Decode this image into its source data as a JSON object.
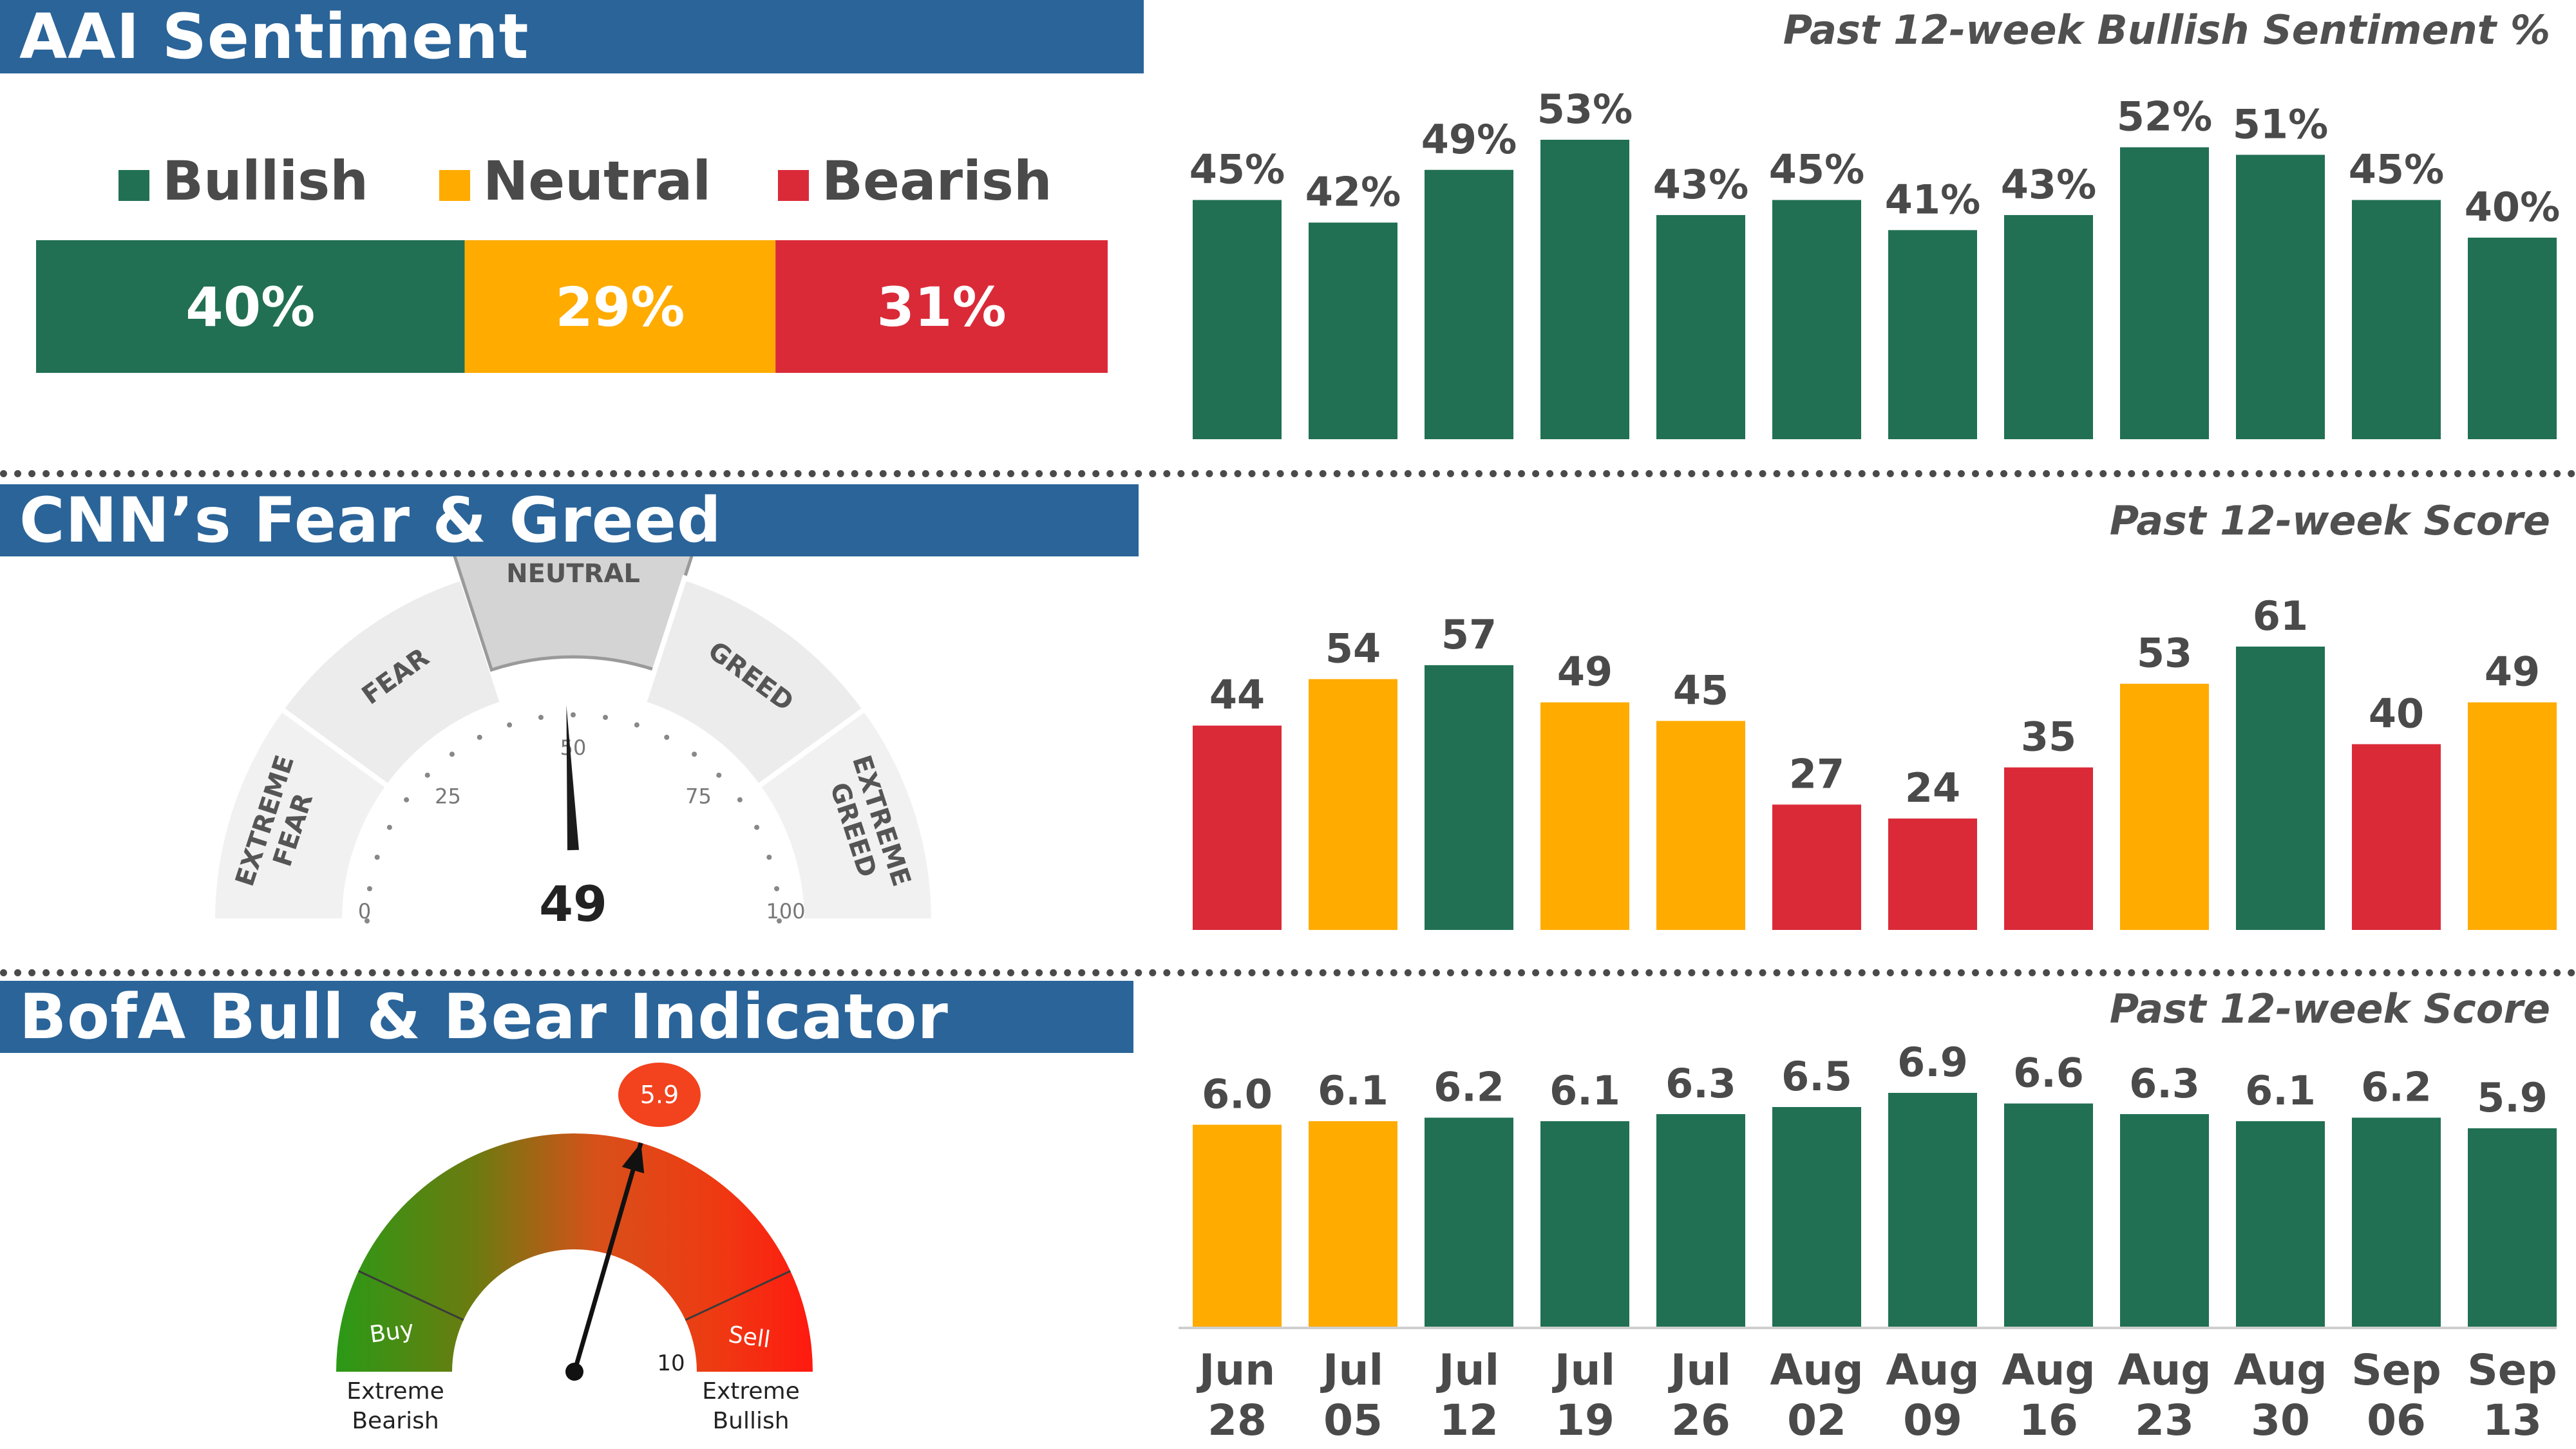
{
  "colors": {
    "green": "#217053",
    "yellow": "#ffab00",
    "red": "#da2a38",
    "banner": "#2a6499",
    "label": "#4a4a4a"
  },
  "aai": {
    "title": "AAI Sentiment",
    "legend": [
      {
        "label": "Bullish",
        "color": "#217053"
      },
      {
        "label": "Neutral",
        "color": "#ffab00"
      },
      {
        "label": "Bearish",
        "color": "#da2a38"
      }
    ],
    "split": [
      {
        "label": "40%",
        "value": 40,
        "color": "#217053"
      },
      {
        "label": "29%",
        "value": 29,
        "color": "#ffab00"
      },
      {
        "label": "31%",
        "value": 31,
        "color": "#da2a38"
      }
    ]
  },
  "cnn": {
    "title": "CNN’s Fear & Greed",
    "gauge": {
      "value": 49,
      "value_label": "49",
      "zones": [
        "EXTREME FEAR",
        "FEAR",
        "NEUTRAL",
        "GREED",
        "EXTREME GREED"
      ],
      "ticks": [
        "0",
        "25",
        "50",
        "75",
        "100"
      ]
    }
  },
  "bofa": {
    "title": "BofA Bull & Bear Indicator",
    "gauge": {
      "value": 5.9,
      "value_label": "5.9",
      "scale_max_label": "10",
      "buy_label": "Buy",
      "sell_label": "Sell",
      "left_label_1": "Extreme",
      "left_label_2": "Bearish",
      "right_label_1": "Extreme",
      "right_label_2": "Bullish"
    }
  },
  "chart_data": [
    {
      "type": "bar",
      "title": "Past 12-week Bullish Sentiment %",
      "categories": [
        "Jun 28",
        "Jul 05",
        "Jul 12",
        "Jul 19",
        "Jul 26",
        "Aug 02",
        "Aug 09",
        "Aug 16",
        "Aug 23",
        "Aug 30",
        "Sep 06",
        "Sep 13"
      ],
      "values": [
        45,
        42,
        49,
        53,
        43,
        45,
        41,
        43,
        52,
        51,
        45,
        40
      ],
      "labels": [
        "45%",
        "42%",
        "49%",
        "53%",
        "43%",
        "45%",
        "41%",
        "43%",
        "52%",
        "51%",
        "45%",
        "40%"
      ],
      "colors": [
        "green",
        "green",
        "green",
        "green",
        "green",
        "green",
        "green",
        "green",
        "green",
        "green",
        "green",
        "green"
      ],
      "ylim": [
        0,
        53
      ]
    },
    {
      "type": "bar",
      "title": "Past 12-week Score",
      "categories": [
        "Jun 28",
        "Jul 05",
        "Jul 12",
        "Jul 19",
        "Jul 26",
        "Aug 02",
        "Aug 09",
        "Aug 16",
        "Aug 23",
        "Aug 30",
        "Sep 06",
        "Sep 13"
      ],
      "values": [
        44,
        54,
        57,
        49,
        45,
        27,
        24,
        35,
        53,
        61,
        40,
        49
      ],
      "labels": [
        "44",
        "54",
        "57",
        "49",
        "45",
        "27",
        "24",
        "35",
        "53",
        "61",
        "40",
        "49"
      ],
      "colors": [
        "red",
        "yellow",
        "green",
        "yellow",
        "yellow",
        "red",
        "red",
        "red",
        "yellow",
        "green",
        "red",
        "yellow"
      ],
      "ylim": [
        0,
        61
      ]
    },
    {
      "type": "bar",
      "title": "Past 12-week Score",
      "categories": [
        "Jun 28",
        "Jul 05",
        "Jul 12",
        "Jul 19",
        "Jul 26",
        "Aug 02",
        "Aug 09",
        "Aug 16",
        "Aug 23",
        "Aug 30",
        "Sep 06",
        "Sep 13"
      ],
      "values": [
        6.0,
        6.1,
        6.2,
        6.1,
        6.3,
        6.5,
        6.9,
        6.6,
        6.3,
        6.1,
        6.2,
        5.9
      ],
      "labels": [
        "6.0",
        "6.1",
        "6.2",
        "6.1",
        "6.3",
        "6.5",
        "6.9",
        "6.6",
        "6.3",
        "6.1",
        "6.2",
        "5.9"
      ],
      "colors": [
        "yellow",
        "yellow",
        "green",
        "green",
        "green",
        "green",
        "green",
        "green",
        "green",
        "green",
        "green",
        "green"
      ],
      "ylim": [
        0,
        6.9
      ]
    }
  ]
}
